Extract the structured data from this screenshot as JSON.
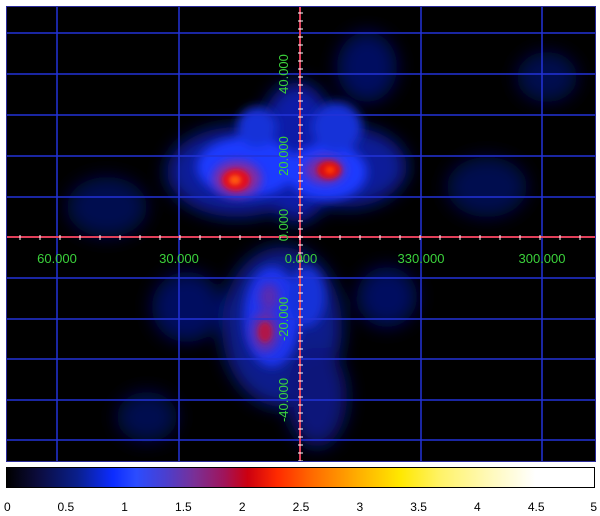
{
  "image": {
    "x_labels": [
      "60.000",
      "30.000",
      "0.000",
      "330.000",
      "300.000"
    ],
    "y_labels": [
      "40.000",
      "20.000",
      "0.000",
      "-20.000",
      "-40.000"
    ],
    "colors": {
      "background": "#000000",
      "grid": "#2233d8",
      "axis": "#e0405a",
      "label": "#3bd23b"
    }
  },
  "colorbar": {
    "ticks": [
      "0",
      "0.5",
      "1",
      "1.5",
      "2",
      "2.5",
      "3",
      "3.5",
      "4",
      "4.5",
      "5"
    ],
    "range": [
      0,
      5
    ]
  }
}
